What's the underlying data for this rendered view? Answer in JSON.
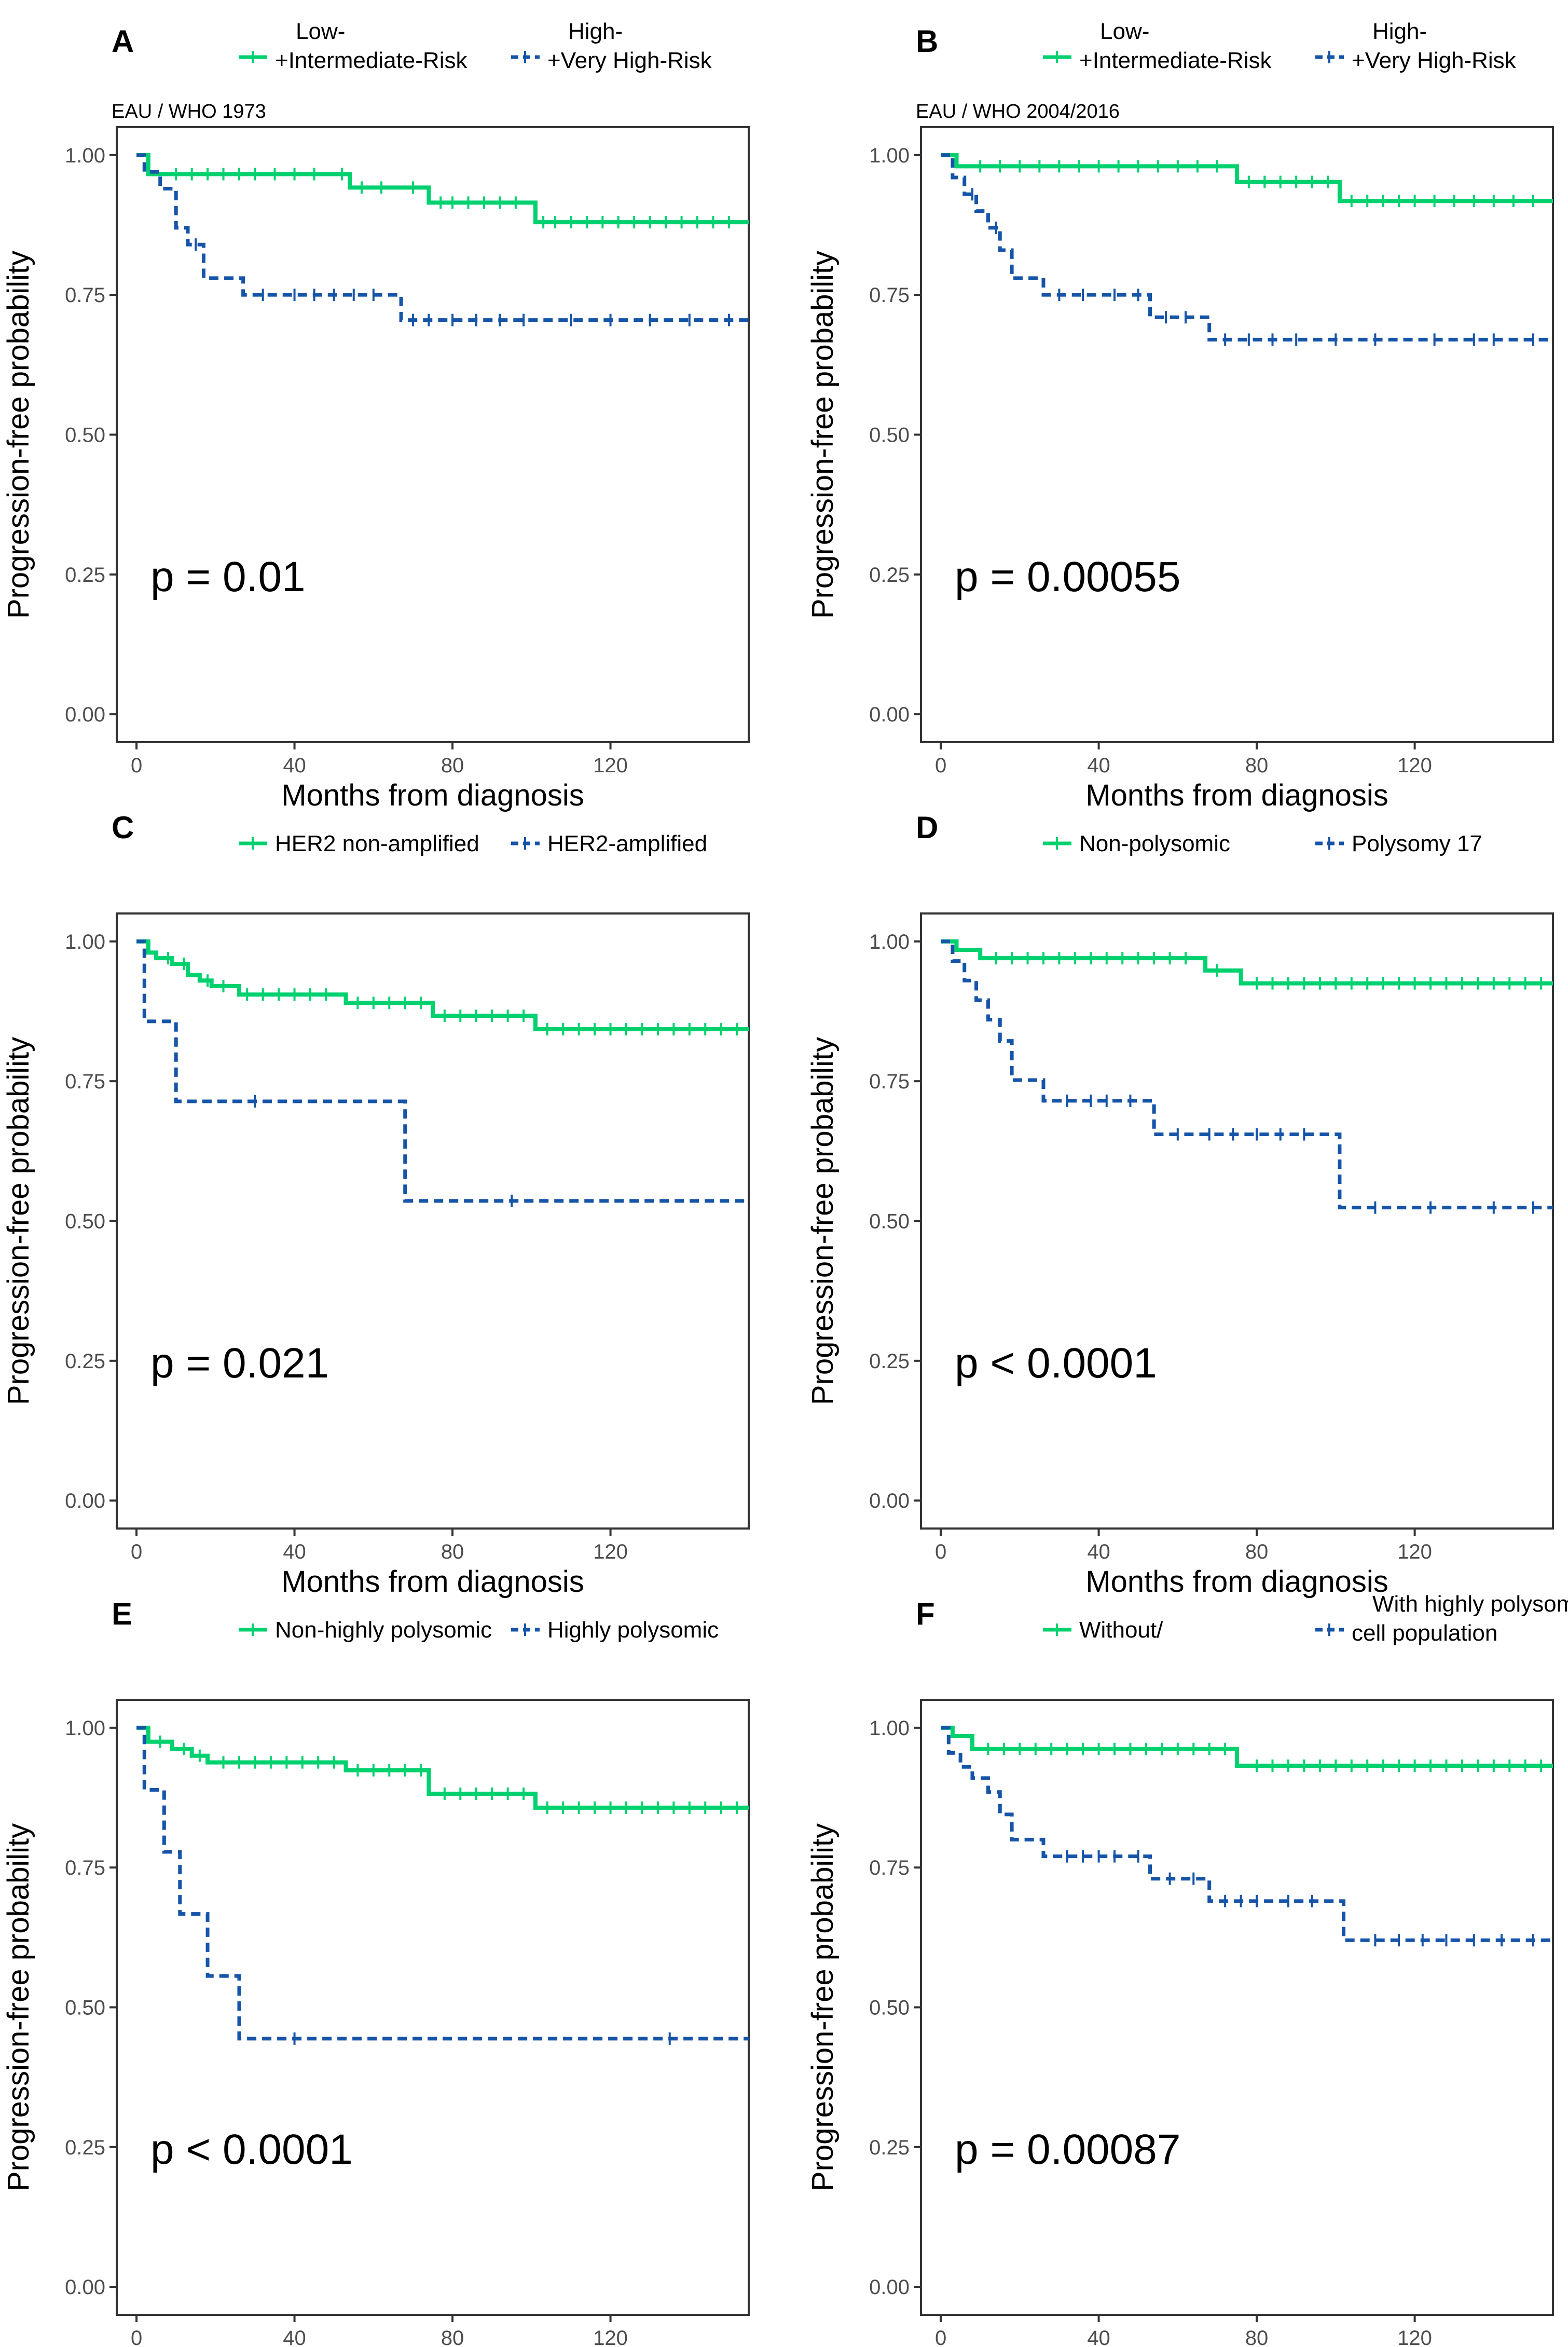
{
  "colors": {
    "group1": "#00d16f",
    "group2": "#1654a8"
  },
  "axes": {
    "xlabel": "Months from diagnosis",
    "ylabel": "Progression-free probability",
    "xlim": [
      -5,
      155
    ],
    "ylim": [
      -0.05,
      1.05
    ],
    "xticks": [
      0,
      40,
      80,
      120
    ],
    "xtick_labels": [
      "0",
      "40",
      "80",
      "120"
    ],
    "yticks": [
      0,
      0.25,
      0.5,
      0.75,
      1
    ],
    "ytick_labels": [
      "0.00",
      "0.25",
      "0.50",
      "0.75",
      "1.00"
    ]
  },
  "chart_data": [
    {
      "type": "line",
      "panel": "A",
      "subtitle": "EAU / WHO 1973",
      "legend": [
        "Low-\n+Intermediate-Risk",
        "High-\n+Very High-Risk"
      ],
      "pvalue": "p = 0.01",
      "series": [
        {
          "name": "Low-+Intermediate-Risk",
          "style": "solid",
          "steps": [
            [
              0,
              1
            ],
            [
              3,
              0.966
            ],
            [
              54,
              0.942
            ],
            [
              74,
              0.915
            ],
            [
              101,
              0.88
            ],
            [
              155,
              0.88
            ]
          ],
          "censor": [
            10,
            14,
            18,
            22,
            26,
            30,
            35,
            40,
            45,
            52,
            57,
            62,
            70,
            77,
            80,
            84,
            88,
            92,
            96,
            103,
            106,
            110,
            114,
            118,
            122,
            126,
            130,
            134,
            138,
            142,
            146,
            150
          ]
        },
        {
          "name": "High-+Very High-Risk",
          "style": "dashed",
          "steps": [
            [
              0,
              1
            ],
            [
              2,
              0.97
            ],
            [
              6,
              0.94
            ],
            [
              10,
              0.87
            ],
            [
              13,
              0.84
            ],
            [
              17,
              0.78
            ],
            [
              27,
              0.75
            ],
            [
              67,
              0.705
            ],
            [
              155,
              0.705
            ]
          ],
          "censor": [
            15,
            32,
            40,
            45,
            50,
            55,
            60,
            70,
            74,
            80,
            86,
            92,
            98,
            110,
            120,
            130,
            140,
            150
          ]
        }
      ]
    },
    {
      "type": "line",
      "panel": "B",
      "subtitle": "EAU / WHO 2004/2016",
      "legend": [
        "Low-\n+Intermediate-Risk",
        "High-\n+Very High-Risk"
      ],
      "pvalue": "p = 0.00055",
      "series": [
        {
          "name": "Low-+Intermediate-Risk",
          "style": "solid",
          "steps": [
            [
              0,
              1
            ],
            [
              4,
              0.98
            ],
            [
              75,
              0.952
            ],
            [
              101,
              0.918
            ],
            [
              155,
              0.918
            ]
          ],
          "censor": [
            10,
            15,
            20,
            25,
            30,
            35,
            40,
            45,
            50,
            55,
            60,
            65,
            70,
            78,
            82,
            86,
            90,
            94,
            98,
            104,
            108,
            112,
            116,
            120,
            125,
            130,
            135,
            140,
            145,
            150
          ]
        },
        {
          "name": "High-+Very High-Risk",
          "style": "dashed",
          "steps": [
            [
              0,
              1
            ],
            [
              3,
              0.96
            ],
            [
              6,
              0.93
            ],
            [
              9,
              0.9
            ],
            [
              12,
              0.87
            ],
            [
              15,
              0.83
            ],
            [
              18,
              0.78
            ],
            [
              26,
              0.75
            ],
            [
              53,
              0.71
            ],
            [
              68,
              0.67
            ],
            [
              155,
              0.67
            ]
          ],
          "censor": [
            8,
            14,
            30,
            36,
            44,
            50,
            57,
            62,
            72,
            78,
            84,
            90,
            100,
            110,
            125,
            135,
            140,
            150
          ]
        }
      ]
    },
    {
      "type": "line",
      "panel": "C",
      "subtitle": "",
      "legend": [
        "HER2 non-amplified",
        "HER2-amplified"
      ],
      "pvalue": "p = 0.021",
      "series": [
        {
          "name": "HER2 non-amplified",
          "style": "solid",
          "steps": [
            [
              0,
              1
            ],
            [
              3,
              0.98
            ],
            [
              5,
              0.97
            ],
            [
              9,
              0.96
            ],
            [
              13,
              0.94
            ],
            [
              16,
              0.93
            ],
            [
              19,
              0.92
            ],
            [
              26,
              0.905
            ],
            [
              53,
              0.89
            ],
            [
              75,
              0.867
            ],
            [
              101,
              0.843
            ],
            [
              155,
              0.843
            ]
          ],
          "censor": [
            8,
            12,
            18,
            22,
            28,
            32,
            36,
            40,
            44,
            48,
            56,
            60,
            64,
            68,
            72,
            78,
            82,
            86,
            90,
            94,
            98,
            104,
            108,
            112,
            116,
            120,
            124,
            128,
            132,
            136,
            140,
            144,
            148,
            152
          ]
        },
        {
          "name": "HER2-amplified",
          "style": "dashed",
          "steps": [
            [
              0,
              1
            ],
            [
              2,
              0.857
            ],
            [
              10,
              0.714
            ],
            [
              68,
              0.536
            ],
            [
              155,
              0.536
            ]
          ],
          "censor": [
            30,
            95
          ]
        }
      ]
    },
    {
      "type": "line",
      "panel": "D",
      "subtitle": "",
      "legend": [
        "Non-polysomic",
        "Polysomy 17"
      ],
      "pvalue": "p < 0.0001",
      "series": [
        {
          "name": "Non-polysomic",
          "style": "solid",
          "steps": [
            [
              0,
              1
            ],
            [
              4,
              0.985
            ],
            [
              10,
              0.97
            ],
            [
              67,
              0.948
            ],
            [
              76,
              0.925
            ],
            [
              155,
              0.925
            ]
          ],
          "censor": [
            14,
            18,
            22,
            26,
            30,
            34,
            38,
            42,
            46,
            50,
            54,
            58,
            62,
            70,
            80,
            84,
            88,
            92,
            96,
            100,
            104,
            108,
            112,
            116,
            120,
            124,
            128,
            132,
            136,
            140,
            144,
            148,
            152
          ]
        },
        {
          "name": "Polysomy 17",
          "style": "dashed",
          "steps": [
            [
              0,
              1
            ],
            [
              3,
              0.965
            ],
            [
              6,
              0.93
            ],
            [
              9,
              0.895
            ],
            [
              12,
              0.86
            ],
            [
              15,
              0.822
            ],
            [
              18,
              0.752
            ],
            [
              26,
              0.715
            ],
            [
              54,
              0.655
            ],
            [
              101,
              0.524
            ],
            [
              155,
              0.524
            ]
          ],
          "censor": [
            32,
            38,
            42,
            48,
            60,
            68,
            74,
            80,
            86,
            92,
            110,
            124,
            140,
            150
          ]
        }
      ]
    },
    {
      "type": "line",
      "panel": "E",
      "subtitle": "",
      "legend": [
        "Non-highly polysomic",
        "Highly polysomic"
      ],
      "pvalue": "p < 0.0001",
      "series": [
        {
          "name": "Non-highly polysomic",
          "style": "solid",
          "steps": [
            [
              0,
              1
            ],
            [
              3,
              0.975
            ],
            [
              9,
              0.962
            ],
            [
              14,
              0.95
            ],
            [
              18,
              0.938
            ],
            [
              53,
              0.924
            ],
            [
              74,
              0.882
            ],
            [
              101,
              0.857
            ],
            [
              155,
              0.857
            ]
          ],
          "censor": [
            6,
            12,
            16,
            22,
            26,
            30,
            34,
            38,
            42,
            46,
            50,
            56,
            60,
            64,
            68,
            72,
            78,
            82,
            86,
            90,
            94,
            98,
            104,
            108,
            112,
            116,
            120,
            124,
            128,
            132,
            136,
            140,
            144,
            148,
            152
          ]
        },
        {
          "name": "Highly polysomic",
          "style": "dashed",
          "steps": [
            [
              0,
              1
            ],
            [
              2,
              0.889
            ],
            [
              7,
              0.778
            ],
            [
              11,
              0.667
            ],
            [
              18,
              0.556
            ],
            [
              26,
              0.444
            ],
            [
              155,
              0.444
            ]
          ],
          "censor": [
            40,
            135
          ]
        }
      ]
    },
    {
      "type": "line",
      "panel": "F",
      "subtitle": "",
      "legend": [
        "Without/",
        "With highly polysomic\ncell population"
      ],
      "pvalue": "p = 0.00087",
      "series": [
        {
          "name": "Without/",
          "style": "solid",
          "steps": [
            [
              0,
              1
            ],
            [
              3,
              0.985
            ],
            [
              8,
              0.962
            ],
            [
              75,
              0.932
            ],
            [
              155,
              0.932
            ]
          ],
          "censor": [
            12,
            16,
            20,
            24,
            28,
            32,
            36,
            40,
            44,
            48,
            52,
            56,
            60,
            64,
            68,
            72,
            80,
            84,
            88,
            92,
            96,
            100,
            104,
            108,
            112,
            116,
            120,
            124,
            128,
            132,
            136,
            140,
            144,
            148,
            152
          ]
        },
        {
          "name": "With highly polysomic cell population",
          "style": "dashed",
          "steps": [
            [
              0,
              1
            ],
            [
              2,
              0.955
            ],
            [
              5,
              0.93
            ],
            [
              8,
              0.91
            ],
            [
              12,
              0.885
            ],
            [
              15,
              0.845
            ],
            [
              18,
              0.8
            ],
            [
              26,
              0.77
            ],
            [
              53,
              0.73
            ],
            [
              68,
              0.69
            ],
            [
              102,
              0.62
            ],
            [
              155,
              0.62
            ]
          ],
          "censor": [
            32,
            36,
            40,
            44,
            50,
            58,
            64,
            72,
            76,
            80,
            88,
            94,
            110,
            116,
            122,
            128,
            135,
            142,
            150
          ]
        }
      ]
    }
  ]
}
